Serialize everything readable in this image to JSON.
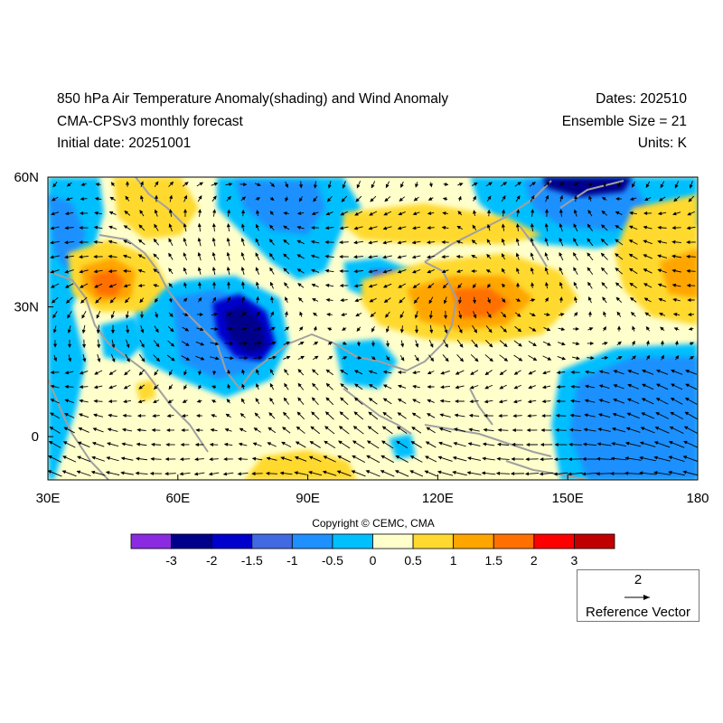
{
  "header": {
    "title": "850 hPa Air Temperature Anomaly(shading) and Wind Anomaly",
    "model": "CMA-CPSv3 monthly forecast",
    "initial_date": "Initial date: 20251001",
    "dates": "Dates: 202510",
    "ensemble": "Ensemble Size = 21",
    "units": "Units: K"
  },
  "map": {
    "lon_range": [
      30,
      180
    ],
    "lat_range": [
      -10,
      60
    ],
    "x_ticks": [
      "30E",
      "60E",
      "90E",
      "120E",
      "150E",
      "180"
    ],
    "y_ticks": [
      "60N",
      "30N",
      "0"
    ],
    "coastline_color": "#a0a0a0"
  },
  "colorbar": {
    "colors": [
      "#8a2be2",
      "#00008b",
      "#0000cd",
      "#4169e1",
      "#1e90ff",
      "#00bfff",
      "#ffffcc",
      "#ffd92f",
      "#ffa500",
      "#ff7000",
      "#ff0000",
      "#c00000"
    ],
    "labels": [
      "-3",
      "-2",
      "-1.5",
      "-1",
      "-0.5",
      "0",
      "0.5",
      "1",
      "1.5",
      "2",
      "3"
    ]
  },
  "copyright": "Copyright © CEMC, CMA",
  "reference_vector": {
    "magnitude": "2",
    "label": "Reference Vector"
  }
}
